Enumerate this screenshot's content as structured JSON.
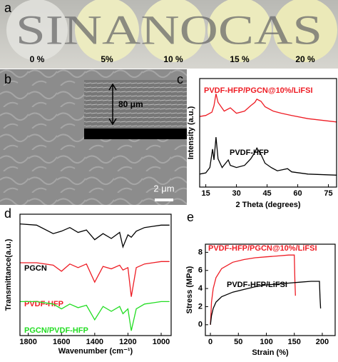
{
  "photo": {
    "panel_label": "a",
    "sample_text": "SINANOCAS",
    "concentrations": [
      "0 %",
      "5%",
      "10 %",
      "15 %",
      "20 %"
    ]
  },
  "sem": {
    "panel_label": "b",
    "inset_thickness": "80 μm",
    "scale_bar": "2 μm"
  },
  "chart_data": [
    {
      "type": "line",
      "panel_label": "c",
      "xlabel": "2 Theta (degrees)",
      "ylabel": "Intensity (a.u.)",
      "xlim": [
        12,
        79
      ],
      "ylim": [
        0,
        10
      ],
      "xticks": [
        15,
        30,
        45,
        60,
        75
      ],
      "series": [
        {
          "name": "PVDF-HFP/PGCN@10%/LiFSI",
          "color": "#ee1c24",
          "x": [
            12,
            15,
            18,
            19,
            20,
            21,
            24,
            27,
            30,
            34,
            37,
            39,
            40,
            42,
            44,
            48,
            52,
            57,
            65,
            79
          ],
          "values": [
            6.5,
            6.6,
            6.9,
            7.5,
            8.6,
            7.8,
            7.0,
            7.3,
            6.8,
            7.0,
            7.5,
            7.8,
            8.1,
            7.9,
            7.4,
            7.0,
            6.8,
            6.6,
            6.3,
            6.0
          ]
        },
        {
          "name": "PVDF-HFP",
          "color": "#000000",
          "x": [
            12,
            15,
            17,
            18.3,
            19,
            20,
            21,
            23,
            26,
            27,
            30,
            34,
            37,
            39,
            40,
            42,
            44,
            47,
            50,
            55,
            57,
            65,
            79
          ],
          "values": [
            1.2,
            1.3,
            1.8,
            3.5,
            2.5,
            4.6,
            2.6,
            1.8,
            2.5,
            2.0,
            1.8,
            2.0,
            2.6,
            3.2,
            3.6,
            3.0,
            2.2,
            1.8,
            1.5,
            1.7,
            1.4,
            1.2,
            1.1
          ]
        }
      ]
    },
    {
      "type": "line",
      "panel_label": "d",
      "xlabel": "Wavenumber (cm⁻¹)",
      "ylabel": "Transmittance(a.u.)",
      "xlim": [
        1850,
        940
      ],
      "ylim": [
        0,
        10
      ],
      "xticks": [
        1800,
        1600,
        1400,
        1200,
        1000
      ],
      "x": [
        1850,
        1750,
        1650,
        1600,
        1550,
        1500,
        1450,
        1400,
        1350,
        1300,
        1250,
        1230,
        1200,
        1180,
        1150,
        1100,
        1050,
        1000,
        950
      ],
      "series": [
        {
          "name": "PGCN",
          "color": "#000000",
          "values": [
            9.2,
            9.1,
            8.4,
            8.6,
            8.9,
            8.5,
            8.7,
            7.9,
            8.4,
            8.0,
            8.5,
            7.3,
            8.3,
            8.1,
            8.6,
            8.9,
            9.0,
            9.1,
            9.1
          ]
        },
        {
          "name": "PVDF-HFP",
          "color": "#ee1c24",
          "values": [
            6.0,
            6.0,
            5.8,
            5.3,
            5.9,
            5.6,
            5.9,
            4.4,
            5.7,
            5.5,
            5.8,
            5.4,
            5.6,
            3.2,
            5.6,
            5.9,
            6.0,
            6.1,
            6.1
          ]
        },
        {
          "name": "PGCN/PVDF-HFP",
          "color": "#22dd22",
          "values": [
            2.8,
            2.8,
            2.6,
            2.2,
            2.6,
            2.3,
            2.5,
            1.3,
            2.4,
            2.0,
            2.4,
            1.8,
            2.2,
            0.4,
            2.2,
            2.6,
            2.7,
            2.8,
            2.8
          ]
        }
      ]
    },
    {
      "type": "line",
      "panel_label": "e",
      "xlabel": "Strain (%)",
      "ylabel": "Stress (MPa)",
      "xlim": [
        -9,
        223
      ],
      "ylim": [
        -1.2,
        8.9
      ],
      "xticks": [
        0,
        50,
        100,
        150,
        200
      ],
      "yticks": [
        0,
        2,
        4,
        6,
        8
      ],
      "series": [
        {
          "name": "PVDF-HFP/PGCN@10%/LiFSI",
          "color": "#ee1c24",
          "x": [
            0,
            2,
            5,
            10,
            20,
            40,
            60,
            80,
            100,
            120,
            140,
            150,
            151,
            152
          ],
          "values": [
            0,
            2.5,
            4.0,
            5.2,
            6.2,
            6.9,
            7.2,
            7.4,
            7.5,
            7.6,
            7.7,
            7.7,
            5.0,
            3.2
          ]
        },
        {
          "name": "PVDF-HFP/LiFSI",
          "color": "#000000",
          "x": [
            0,
            2,
            5,
            10,
            20,
            40,
            60,
            80,
            100,
            120,
            140,
            160,
            180,
            195,
            196,
            197
          ],
          "values": [
            0,
            1.0,
            1.8,
            2.5,
            3.1,
            3.6,
            3.9,
            4.2,
            4.4,
            4.5,
            4.6,
            4.7,
            4.8,
            4.8,
            3.0,
            1.8
          ]
        }
      ]
    }
  ]
}
